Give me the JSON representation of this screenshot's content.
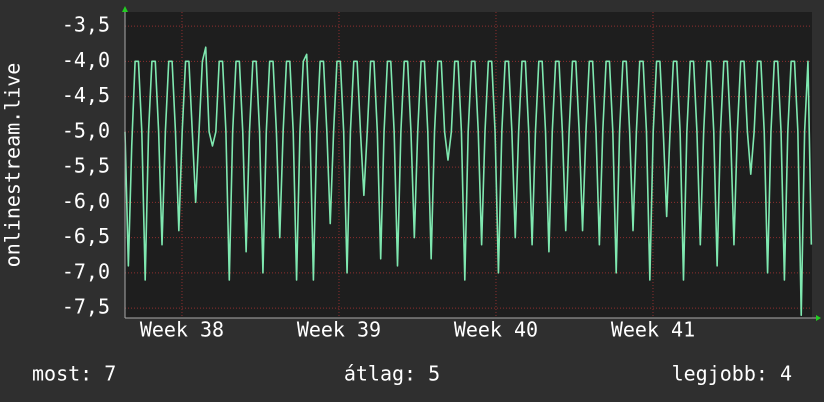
{
  "chart_data": {
    "type": "line",
    "ylabel": "onlinestream.live",
    "footer": {
      "current": "most: 7",
      "average": "átlag: 5",
      "best": "legjobb: 4"
    },
    "grid": true,
    "xlim": [
      0,
      30.63
    ],
    "ylim": [
      -7.64,
      -3.3
    ],
    "xticks": [
      {
        "value": 2.54,
        "label": "Week 38"
      },
      {
        "value": 9.54,
        "label": "Week 39"
      },
      {
        "value": 16.54,
        "label": "Week 40"
      },
      {
        "value": 23.54,
        "label": "Week 41"
      }
    ],
    "yticks": [
      {
        "value": -3.5,
        "label": "-3,5"
      },
      {
        "value": -4,
        "label": "-4,0"
      },
      {
        "value": -4.5,
        "label": "-4,5"
      },
      {
        "value": -5,
        "label": "-5,0"
      },
      {
        "value": -5.5,
        "label": "-5,5"
      },
      {
        "value": -6,
        "label": "-6,0"
      },
      {
        "value": -6.5,
        "label": "-6,5"
      },
      {
        "value": -7,
        "label": "-7,0"
      },
      {
        "value": -7.5,
        "label": "-7,5"
      }
    ],
    "x": [
      0,
      0.15,
      0.3,
      0.45,
      0.6,
      0.75,
      0.9,
      1.05,
      1.2,
      1.35,
      1.5,
      1.65,
      1.8,
      1.95,
      2.1,
      2.25,
      2.4,
      2.55,
      2.7,
      2.85,
      3,
      3.15,
      3.3,
      3.45,
      3.6,
      3.75,
      3.9,
      4.05,
      4.2,
      4.35,
      4.5,
      4.65,
      4.8,
      4.95,
      5.1,
      5.25,
      5.4,
      5.55,
      5.7,
      5.85,
      6,
      6.15,
      6.3,
      6.45,
      6.6,
      6.75,
      6.9,
      7.05,
      7.2,
      7.35,
      7.5,
      7.65,
      7.8,
      7.95,
      8.1,
      8.25,
      8.4,
      8.55,
      8.7,
      8.85,
      9,
      9.15,
      9.3,
      9.45,
      9.6,
      9.75,
      9.9,
      10.05,
      10.2,
      10.35,
      10.5,
      10.65,
      10.8,
      10.95,
      11.1,
      11.25,
      11.4,
      11.55,
      11.7,
      11.85,
      12,
      12.15,
      12.3,
      12.45,
      12.6,
      12.75,
      12.9,
      13.05,
      13.2,
      13.35,
      13.5,
      13.65,
      13.8,
      13.95,
      14.1,
      14.25,
      14.4,
      14.55,
      14.7,
      14.85,
      15,
      15.15,
      15.3,
      15.45,
      15.6,
      15.75,
      15.9,
      16.05,
      16.2,
      16.35,
      16.5,
      16.65,
      16.8,
      16.95,
      17.1,
      17.25,
      17.4,
      17.55,
      17.7,
      17.85,
      18,
      18.15,
      18.3,
      18.45,
      18.6,
      18.75,
      18.9,
      19.05,
      19.2,
      19.35,
      19.5,
      19.65,
      19.8,
      19.95,
      20.1,
      20.25,
      20.4,
      20.55,
      20.7,
      20.85,
      21,
      21.15,
      21.3,
      21.45,
      21.6,
      21.75,
      21.9,
      22.05,
      22.2,
      22.35,
      22.5,
      22.65,
      22.8,
      22.95,
      23.1,
      23.25,
      23.4,
      23.55,
      23.7,
      23.85,
      24,
      24.15,
      24.3,
      24.45,
      24.6,
      24.75,
      24.9,
      25.05,
      25.2,
      25.35,
      25.5,
      25.65,
      25.8,
      25.95,
      26.1,
      26.25,
      26.4,
      26.55,
      26.7,
      26.85,
      27,
      27.15,
      27.3,
      27.45,
      27.6,
      27.75,
      27.9,
      28.05,
      28.2,
      28.35,
      28.5,
      28.65,
      28.8,
      28.95,
      29.1,
      29.25,
      29.4,
      29.55,
      29.7,
      29.85,
      30,
      30.15,
      30.3,
      30.45,
      30.6
    ],
    "series": [
      {
        "name": "onlinestream.live",
        "color": "#7fe8b0",
        "values": [
          -5,
          -6.9,
          -5.2,
          -4,
          -4,
          -5,
          -7.1,
          -5,
          -4,
          -4,
          -5,
          -6.6,
          -5,
          -4,
          -4,
          -5,
          -6.4,
          -5,
          -4,
          -4,
          -5,
          -6,
          -5,
          -4,
          -3.8,
          -5,
          -5.2,
          -5,
          -4,
          -4,
          -5,
          -7.1,
          -5,
          -4,
          -4,
          -5,
          -6.7,
          -5,
          -4,
          -4,
          -5,
          -7,
          -5,
          -4,
          -4,
          -5,
          -6.5,
          -5,
          -4,
          -4,
          -5,
          -7.1,
          -5,
          -4,
          -3.9,
          -5,
          -7.1,
          -5,
          -4,
          -4,
          -5,
          -6.3,
          -5,
          -4,
          -4,
          -5,
          -7,
          -5,
          -4,
          -4,
          -5,
          -5.9,
          -5,
          -4,
          -4,
          -5,
          -6.8,
          -5,
          -4,
          -4,
          -5,
          -6.9,
          -5,
          -4,
          -4,
          -5,
          -6.5,
          -5,
          -4,
          -4,
          -5,
          -6.8,
          -5,
          -4,
          -4,
          -5,
          -5.4,
          -5,
          -4,
          -4,
          -5,
          -7.1,
          -5,
          -4,
          -4,
          -5,
          -6.6,
          -5,
          -4,
          -4,
          -5,
          -7,
          -5,
          -4,
          -4,
          -5,
          -6.5,
          -5,
          -4,
          -4,
          -5,
          -6.6,
          -5,
          -4,
          -4,
          -5,
          -6.7,
          -5,
          -4,
          -4,
          -5,
          -6.4,
          -5,
          -4,
          -4,
          -5,
          -6.4,
          -5,
          -4,
          -4,
          -5,
          -6.6,
          -5,
          -4,
          -4,
          -5,
          -7,
          -5,
          -4,
          -4,
          -5,
          -6.4,
          -5,
          -4,
          -4,
          -5,
          -7.1,
          -5,
          -4,
          -4,
          -5,
          -6.2,
          -5,
          -4,
          -4,
          -5,
          -7.1,
          -5,
          -4,
          -4,
          -5,
          -6.6,
          -5,
          -4,
          -4,
          -5,
          -6.9,
          -5,
          -4,
          -4,
          -5,
          -6.6,
          -5,
          -4,
          -4,
          -5,
          -5.6,
          -5,
          -4,
          -4,
          -5,
          -7,
          -5,
          -4,
          -4,
          -5,
          -7.1,
          -5,
          -4,
          -4,
          -5,
          -7.6,
          -5,
          -4,
          -6.6
        ]
      }
    ]
  }
}
